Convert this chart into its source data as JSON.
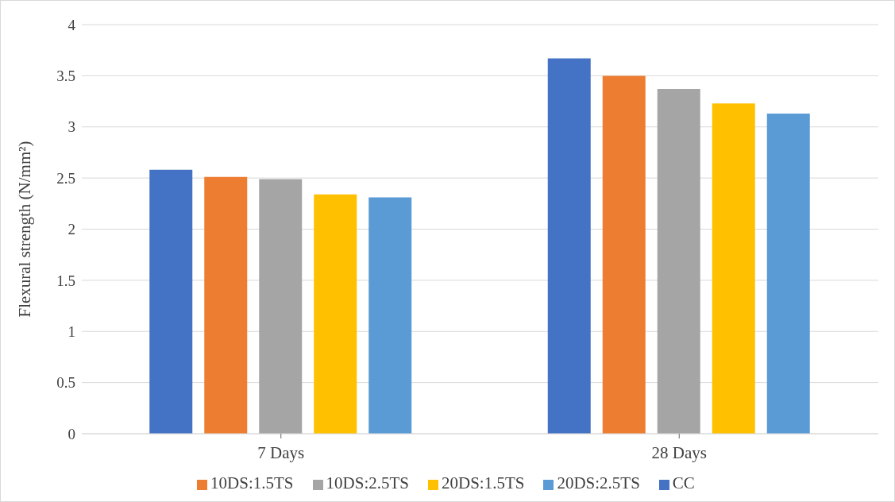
{
  "chart_data": {
    "type": "bar",
    "ylabel": "Flexural strength (N/mm²)",
    "categories": [
      "7 Days",
      "28 Days"
    ],
    "series": [
      {
        "name": "CC",
        "color": "#4472c4",
        "values": [
          2.58,
          3.67
        ]
      },
      {
        "name": "10DS:1.5TS",
        "color": "#ed7d31",
        "values": [
          2.51,
          3.5
        ]
      },
      {
        "name": "10DS:2.5TS",
        "color": "#a5a5a5",
        "values": [
          2.49,
          3.37
        ]
      },
      {
        "name": "20DS:1.5TS",
        "color": "#ffc000",
        "values": [
          2.34,
          3.23
        ]
      },
      {
        "name": "20DS:2.5TS",
        "color": "#5b9bd5",
        "values": [
          2.31,
          3.13
        ]
      }
    ],
    "ylim": [
      0,
      4
    ],
    "yticks": [
      0,
      0.5,
      1,
      1.5,
      2,
      2.5,
      3,
      3.5,
      4
    ],
    "grid": "y",
    "legend": "bottom"
  }
}
